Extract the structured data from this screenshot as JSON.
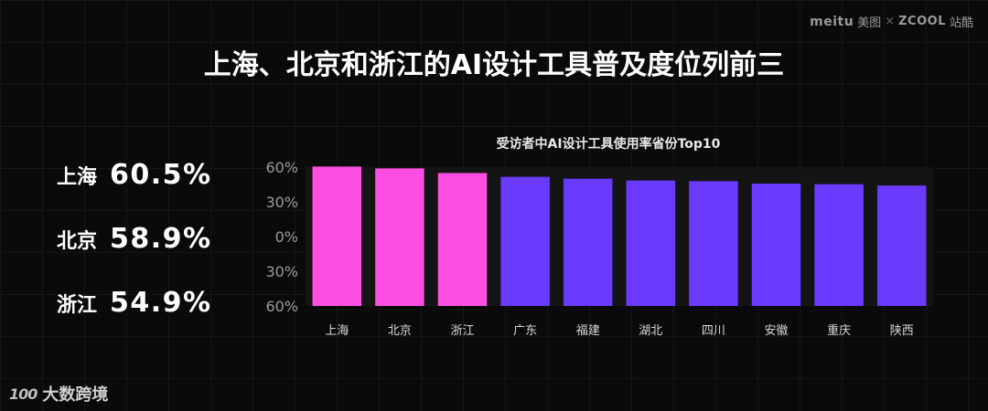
{
  "brand": {
    "meitu": "meitu",
    "meitu_cn": "美图",
    "sep": "×",
    "zcool": "ZCOOL",
    "zcool_cn": "站酷"
  },
  "title": "上海、北京和浙江的AI设计工具普及度位列前三",
  "highlights": [
    {
      "province": "上海",
      "value": "60.5%"
    },
    {
      "province": "北京",
      "value": "58.9%"
    },
    {
      "province": "浙江",
      "value": "54.9%"
    }
  ],
  "footer": {
    "mark": "100",
    "name": "大数跨境"
  },
  "colors": {
    "highlight": "#ff4fe3",
    "normal": "#6a3bff",
    "background": "#0a0a0a",
    "plot": "#141414"
  },
  "chart_data": {
    "type": "bar",
    "title": "受访者中AI设计工具使用率省份Top10",
    "categories": [
      "上海",
      "北京",
      "浙江",
      "广东",
      "福建",
      "湖北",
      "四川",
      "安徽",
      "重庆",
      "陕西"
    ],
    "values": [
      60.5,
      58.9,
      54.9,
      51.6,
      50.0,
      48.4,
      47.9,
      45.7,
      45.2,
      44.1
    ],
    "highlighted": [
      true,
      true,
      true,
      false,
      false,
      false,
      false,
      false,
      false,
      false
    ],
    "y_tick_labels": [
      "60%",
      "30%",
      "0%",
      "30%",
      "60%"
    ],
    "ylim": [
      -60,
      60
    ],
    "xlabel": "",
    "ylabel": "",
    "grid": false
  }
}
